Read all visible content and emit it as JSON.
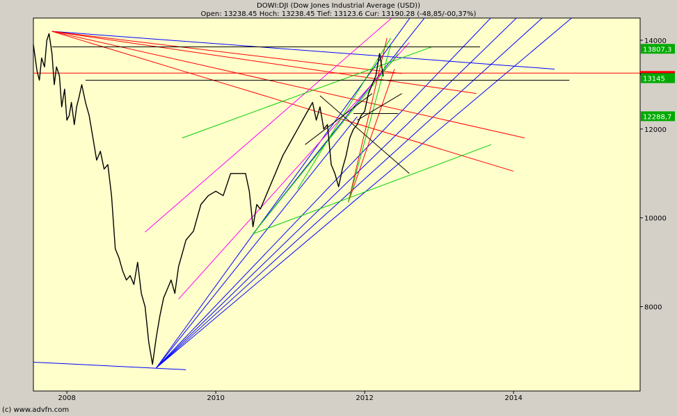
{
  "chart_data": {
    "type": "line",
    "title": "DOWI:DJI (Dow Jones Industrial Average (USD))",
    "subtitle": "Open: 13238.45 Hoch: 13238.45 Tief: 13123.6 Cur: 13190.28 (-48,85/-00,37%)",
    "x_ticks": [
      "2008",
      "2010",
      "2012",
      "2014"
    ],
    "y_ticks": [
      "8000",
      "10000",
      "12000",
      "14000"
    ],
    "ylim": [
      6100,
      14500
    ],
    "xlim": [
      2007.55,
      2015.7
    ],
    "price_labels": [
      {
        "text": "13807,3",
        "value": 13807.3
      },
      {
        "text": "13145",
        "value": 13145
      },
      {
        "text": "12288,7",
        "value": 12288.7
      }
    ],
    "series": [
      {
        "x": [
          2007.55,
          2007.6,
          2007.63,
          2007.66,
          2007.7,
          2007.73,
          2007.76,
          2007.8,
          2007.83,
          2007.86,
          2007.9,
          2007.93,
          2007.97,
          2008.0,
          2008.03,
          2008.06,
          2008.1,
          2008.13,
          2008.16,
          2008.2,
          2008.25,
          2008.3,
          2008.35,
          2008.4,
          2008.45,
          2008.5,
          2008.55,
          2008.6,
          2008.65,
          2008.7,
          2008.75,
          2008.8,
          2008.85,
          2008.9,
          2008.95,
          2009.0,
          2009.05,
          2009.1,
          2009.15,
          2009.2,
          2009.25,
          2009.3,
          2009.35,
          2009.4,
          2009.45,
          2009.5,
          2009.55,
          2009.6,
          2009.7,
          2009.8,
          2009.9,
          2010.0,
          2010.1,
          2010.2,
          2010.3,
          2010.4,
          2010.45,
          2010.5,
          2010.55,
          2010.6,
          2010.7,
          2010.8,
          2010.9,
          2011.0,
          2011.1,
          2011.2,
          2011.3,
          2011.35,
          2011.4,
          2011.45,
          2011.5,
          2011.55,
          2011.6,
          2011.65,
          2011.7,
          2011.75,
          2011.8,
          2011.85,
          2011.9,
          2011.95,
          2012.0,
          2012.05,
          2012.1,
          2012.15,
          2012.2,
          2012.25
        ],
        "values": [
          13900,
          13300,
          13100,
          13600,
          13400,
          14000,
          14150,
          13700,
          13000,
          13400,
          13200,
          12500,
          12900,
          12200,
          12300,
          12600,
          12100,
          12500,
          12700,
          13000,
          12600,
          12300,
          11800,
          11300,
          11500,
          11100,
          11200,
          10500,
          9300,
          9100,
          8800,
          8600,
          8700,
          8500,
          9000,
          8300,
          8000,
          7200,
          6700,
          7300,
          7800,
          8200,
          8400,
          8600,
          8300,
          8900,
          9200,
          9500,
          9700,
          10300,
          10500,
          10600,
          10500,
          11000,
          11000,
          11000,
          10600,
          9800,
          10300,
          10200,
          10600,
          11000,
          11400,
          11700,
          12000,
          12300,
          12600,
          12200,
          12500,
          12000,
          12100,
          11200,
          11000,
          10700,
          11100,
          11400,
          11800,
          12000,
          12100,
          12300,
          12400,
          12800,
          13000,
          13200,
          13700,
          13190
        ]
      }
    ],
    "trend_lines": [
      {
        "color": "#0000ff",
        "x1": 2007.55,
        "y1": 6750,
        "x2": 2009.6,
        "y2": 6580
      },
      {
        "color": "#0000ff",
        "x1": 2007.8,
        "y1": 14200,
        "x2": 2014.55,
        "y2": 13350
      },
      {
        "color": "#0000ff",
        "x1": 2009.2,
        "y1": 6620,
        "x2": 2011.9,
        "y2": 12280
      },
      {
        "color": "#0000ff",
        "x1": 2009.2,
        "y1": 6620,
        "x2": 2012.65,
        "y2": 14600
      },
      {
        "color": "#0000ff",
        "x1": 2009.2,
        "y1": 6620,
        "x2": 2013.75,
        "y2": 14600
      },
      {
        "color": "#0000ff",
        "x1": 2009.2,
        "y1": 6620,
        "x2": 2014.1,
        "y2": 14600
      },
      {
        "color": "#0000ff",
        "x1": 2009.2,
        "y1": 6620,
        "x2": 2014.45,
        "y2": 14600
      },
      {
        "color": "#0000ff",
        "x1": 2009.2,
        "y1": 6620,
        "x2": 2014.85,
        "y2": 14600
      },
      {
        "color": "#0000ff",
        "x1": 2010.5,
        "y1": 9640,
        "x2": 2012.85,
        "y2": 14600
      },
      {
        "color": "#ff0000",
        "x1": 2007.8,
        "y1": 14200,
        "x2": 2014.0,
        "y2": 11050
      },
      {
        "color": "#ff0000",
        "x1": 2007.8,
        "y1": 14200,
        "x2": 2014.15,
        "y2": 11800
      },
      {
        "color": "#ff0000",
        "x1": 2007.8,
        "y1": 14200,
        "x2": 2013.5,
        "y2": 12800
      },
      {
        "color": "#ff0000",
        "x1": 2007.8,
        "y1": 14200,
        "x2": 2012.5,
        "y2": 13250
      },
      {
        "color": "#ff0000",
        "x1": 2011.78,
        "y1": 10350,
        "x2": 2012.4,
        "y2": 13350
      },
      {
        "color": "#ff0000",
        "x1": 2011.78,
        "y1": 10350,
        "x2": 2012.3,
        "y2": 14050
      },
      {
        "color": "#ff0000",
        "x1": 2007.55,
        "y1": 13260,
        "x2": 2015.7,
        "y2": 13260
      },
      {
        "color": "#ff00ff",
        "x1": 2009.05,
        "y1": 9680,
        "x2": 2012.5,
        "y2": 14700
      },
      {
        "color": "#ff00ff",
        "x1": 2009.5,
        "y1": 8170,
        "x2": 2012.6,
        "y2": 13950
      },
      {
        "color": "#00cc00",
        "x1": 2009.55,
        "y1": 11800,
        "x2": 2012.9,
        "y2": 13850
      },
      {
        "color": "#00cc00",
        "x1": 2010.5,
        "y1": 9640,
        "x2": 2013.7,
        "y2": 11650
      },
      {
        "color": "#00cc00",
        "x1": 2010.5,
        "y1": 9640,
        "x2": 2012.45,
        "y2": 13700
      },
      {
        "color": "#00cc00",
        "x1": 2011.1,
        "y1": 10650,
        "x2": 2012.35,
        "y2": 14050
      },
      {
        "color": "#00cc00",
        "x1": 2011.78,
        "y1": 10350,
        "x2": 2012.35,
        "y2": 13900
      },
      {
        "color": "#000000",
        "x1": 2007.8,
        "y1": 13850,
        "x2": 2013.55,
        "y2": 13850
      },
      {
        "color": "#000000",
        "x1": 2008.25,
        "y1": 13100,
        "x2": 2014.75,
        "y2": 13100
      },
      {
        "color": "#000000",
        "x1": 2011.85,
        "y1": 12350,
        "x2": 2012.45,
        "y2": 12350
      },
      {
        "color": "#000000",
        "x1": 2011.2,
        "y1": 11650,
        "x2": 2012.1,
        "y2": 12800
      },
      {
        "color": "#000000",
        "x1": 2011.4,
        "y1": 12750,
        "x2": 2012.6,
        "y2": 11000
      },
      {
        "color": "#000000",
        "x1": 2011.9,
        "y1": 12200,
        "x2": 2012.5,
        "y2": 12800
      }
    ]
  },
  "footer": {
    "copyright": "(c) www.advfn.com"
  }
}
